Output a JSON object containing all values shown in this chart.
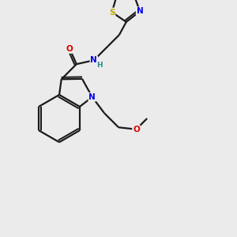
{
  "bg_color": "#ebebeb",
  "bond_color": "#1a1a1a",
  "atom_colors": {
    "N": "#0000ee",
    "O": "#dd0000",
    "S": "#bbaa00",
    "H": "#2a8888",
    "C": "#1a1a1a"
  }
}
